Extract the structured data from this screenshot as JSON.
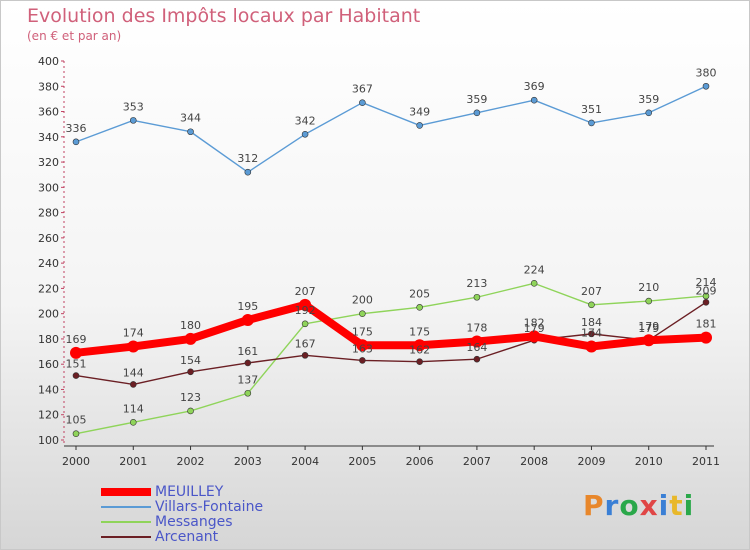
{
  "title": "Evolution des Impôts locaux par Habitant",
  "subtitle": "(en € et par an)",
  "logo": {
    "text": "Proxiti",
    "colors": [
      "#e8872b",
      "#3a7fd5",
      "#2aa84a",
      "#e04646",
      "#3a7fd5",
      "#e8b82b",
      "#2aa84a"
    ]
  },
  "chart_data": {
    "type": "line",
    "x": [
      "2000",
      "2001",
      "2002",
      "2003",
      "2004",
      "2005",
      "2006",
      "2007",
      "2008",
      "2009",
      "2010",
      "2011"
    ],
    "ylim": [
      100,
      400
    ],
    "yticks": [
      100,
      120,
      140,
      160,
      180,
      200,
      220,
      240,
      260,
      280,
      300,
      320,
      340,
      360,
      380,
      400
    ],
    "grid": false,
    "legend_placement": "bottom-left",
    "series": [
      {
        "name": "Villars-Fontaine",
        "color": "#5b9bd5",
        "values": [
          336,
          353,
          344,
          312,
          342,
          367,
          349,
          359,
          369,
          351,
          359,
          380
        ]
      },
      {
        "name": "Messanges",
        "color": "#8fd45a",
        "values": [
          105,
          114,
          123,
          137,
          192,
          200,
          205,
          213,
          224,
          207,
          210,
          214
        ]
      },
      {
        "name": "Arcenant",
        "color": "#6b1f24",
        "values": [
          151,
          144,
          154,
          161,
          167,
          163,
          162,
          164,
          179,
          184,
          179,
          209
        ]
      },
      {
        "name": "MEUILLEY",
        "color": "#ff0000",
        "values": [
          169,
          174,
          180,
          195,
          207,
          175,
          175,
          178,
          182,
          174,
          179,
          181
        ]
      }
    ],
    "legend_order": [
      "MEUILLEY",
      "Villars-Fontaine",
      "Messanges",
      "Arcenant"
    ]
  }
}
